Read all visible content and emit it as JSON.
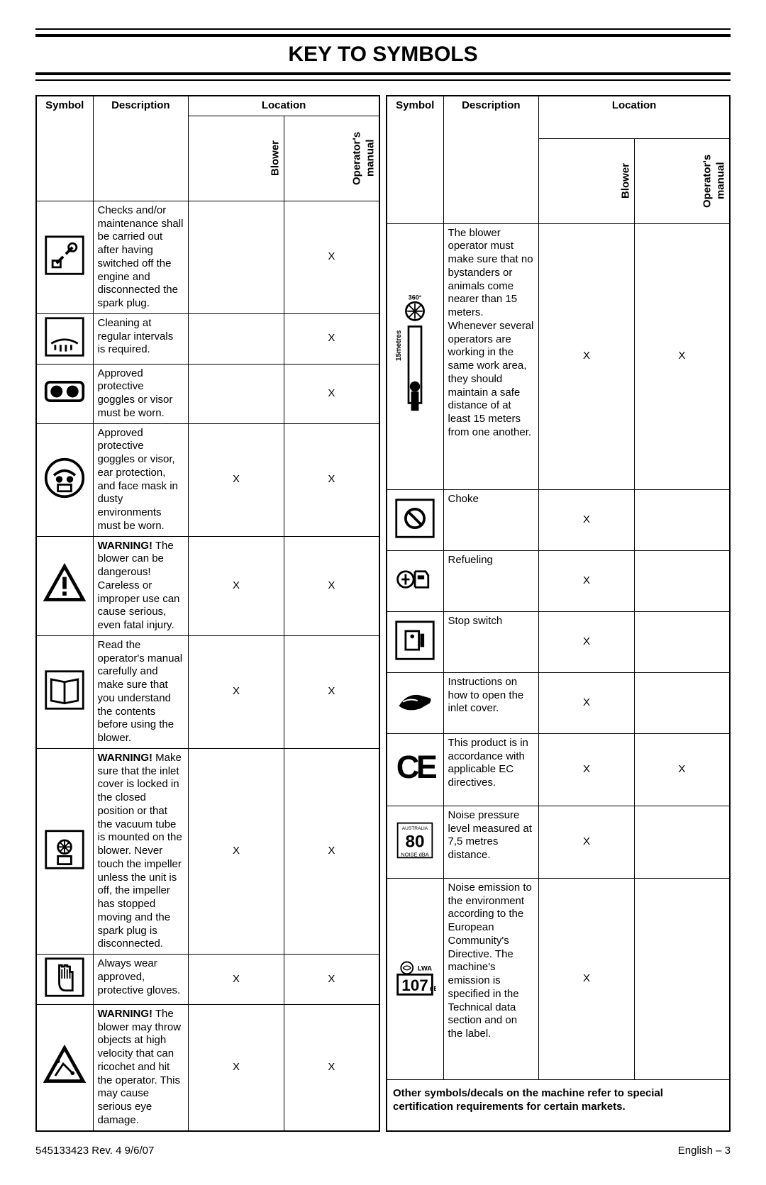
{
  "title": "KEY TO SYMBOLS",
  "headers": {
    "symbol": "Symbol",
    "description": "Description",
    "location": "Location",
    "blower": "Blower",
    "manual": "Operator's manual"
  },
  "left": [
    {
      "icon": "maintenance",
      "desc": "Checks and/or maintenance shall be carried out after having switched off the engine and disconnected the spark plug.",
      "blower": "",
      "manual": "X"
    },
    {
      "icon": "cleaning",
      "desc": "Cleaning at regular intervals is required.",
      "blower": "",
      "manual": "X"
    },
    {
      "icon": "goggles",
      "desc": "Approved protective goggles or visor must be worn.",
      "blower": "",
      "manual": "X"
    },
    {
      "icon": "ppe-full",
      "desc": "Approved protective goggles or visor, ear protection, and face mask in dusty environments must be worn.",
      "blower": "X",
      "manual": "X"
    },
    {
      "icon": "warning-triangle",
      "desc": "<b>WARNING!</b> The blower can be dangerous! Careless or improper use can cause serious, even fatal injury.",
      "blower": "X",
      "manual": "X"
    },
    {
      "icon": "read-manual",
      "desc": "Read the operator's manual carefully and make sure that you understand the contents before using the blower.",
      "blower": "X",
      "manual": "X"
    },
    {
      "icon": "inlet-lock",
      "desc": "<b>WARNING!</b> Make sure that the inlet cover is locked in the closed position or that the vacuum tube is mounted on the blower. Never touch the impeller unless the unit is off, the impeller has stopped moving and the spark plug is disconnected.",
      "blower": "X",
      "manual": "X"
    },
    {
      "icon": "gloves",
      "desc": "Always wear approved, protective gloves.",
      "blower": "X",
      "manual": "X"
    },
    {
      "icon": "ricochet",
      "desc": "<b>WARNING!</b> The blower may throw objects at high velocity that can ricochet and hit the operator. This may cause serious eye damage.",
      "blower": "X",
      "manual": "X"
    }
  ],
  "right": [
    {
      "icon": "bystander",
      "desc": "The blower operator must make sure that no bystanders or animals come nearer than 15 meters. Whenever several operators are working in the same work area, they should maintain a safe distance of at least 15 meters from one another.",
      "blower": "X",
      "manual": "X",
      "tall": true
    },
    {
      "icon": "choke",
      "desc": "Choke",
      "blower": "X",
      "manual": ""
    },
    {
      "icon": "refuel",
      "desc": "Refueling",
      "blower": "X",
      "manual": ""
    },
    {
      "icon": "stop-switch",
      "desc": "Stop switch",
      "blower": "X",
      "manual": ""
    },
    {
      "icon": "open-inlet",
      "desc": "Instructions on how to open the inlet cover.",
      "blower": "X",
      "manual": ""
    },
    {
      "icon": "ce-mark",
      "desc": "This product is in accordance with applicable EC directives.",
      "blower": "X",
      "manual": "X"
    },
    {
      "icon": "noise-80",
      "desc": "Noise pressure level measured at 7,5 metres distance.",
      "blower": "X",
      "manual": ""
    },
    {
      "icon": "noise-107",
      "desc": "Noise emission to the environment according to the European Community's Directive. The machine's emission is specified in the Technical data section and on the label.",
      "blower": "X",
      "manual": ""
    }
  ],
  "note": "Other symbols/decals on the machine refer to special certification requirements for certain markets.",
  "footer": {
    "rev": "545133423   Rev. 4   9/6/07",
    "page": "English – 3"
  }
}
